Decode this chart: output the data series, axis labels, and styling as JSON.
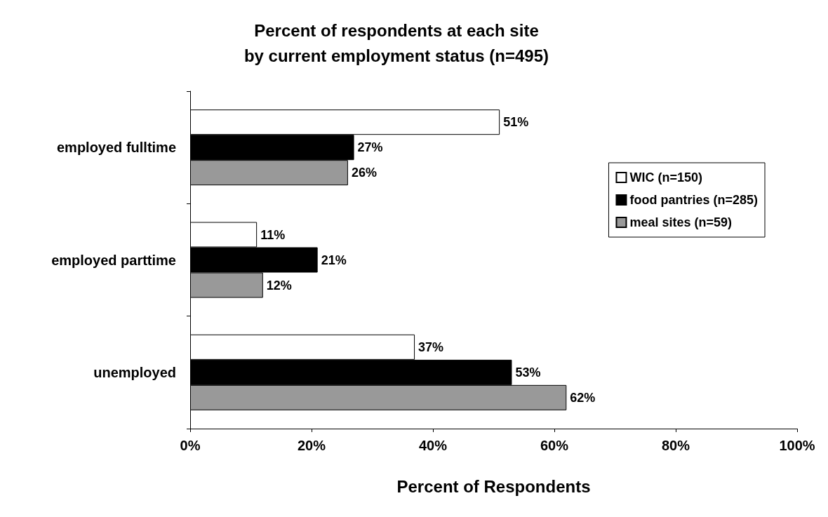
{
  "chart_data": {
    "type": "bar",
    "orientation": "horizontal",
    "title": "Percent of respondents at each site\nby current employment status (n=495)",
    "xlabel": "Percent of Respondents",
    "categories": [
      "employed fulltime",
      "employed parttime",
      "unemployed"
    ],
    "series": [
      {
        "name": "WIC (n=150)",
        "color": "#ffffff",
        "values": [
          51,
          11,
          37
        ],
        "value_labels": [
          "51%",
          "11%",
          "37%"
        ]
      },
      {
        "name": "food pantries (n=285)",
        "color": "#000000",
        "values": [
          27,
          21,
          53
        ],
        "value_labels": [
          "27%",
          "21%",
          "53%"
        ]
      },
      {
        "name": "meal sites (n=59)",
        "color": "#999999",
        "values": [
          26,
          12,
          62
        ],
        "value_labels": [
          "26%",
          "12%",
          "62%"
        ]
      }
    ],
    "xlim": [
      0,
      100
    ],
    "xticks": [
      {
        "value": 0,
        "label": "0%"
      },
      {
        "value": 20,
        "label": "20%"
      },
      {
        "value": 40,
        "label": "40%"
      },
      {
        "value": 60,
        "label": "60%"
      },
      {
        "value": 80,
        "label": "80%"
      },
      {
        "value": 100,
        "label": "100%"
      }
    ],
    "grid": false,
    "legend": "right"
  }
}
